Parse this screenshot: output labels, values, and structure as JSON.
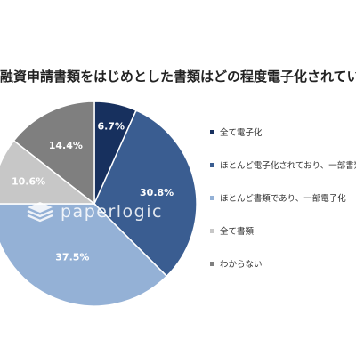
{
  "chart_data": {
    "type": "pie",
    "title": "融資申請書類をはじめとした書類はどの程度電子化されていますか",
    "categories": [
      "全て電子化",
      "ほとんど電子化されており、一部書類",
      "ほとんど書類であり、一部電子化",
      "全て書類",
      "わからない"
    ],
    "values": [
      6.7,
      30.8,
      37.5,
      10.6,
      14.4
    ],
    "value_labels": [
      "6.7%",
      "30.8%",
      "37.5%",
      "10.6%",
      "14.4%"
    ],
    "colors": [
      "#17305e",
      "#3a5d91",
      "#94b1d6",
      "#c7c7c7",
      "#7f7f7f"
    ],
    "label_colors": [
      "#ffffff",
      "#ffffff",
      "#ffffff",
      "#ffffff",
      "#ffffff"
    ],
    "start_angle_deg": 0,
    "direction": "clockwise",
    "legend_position": "right"
  },
  "watermark": {
    "text": "paperlogic",
    "logo": "stacked-layers-icon"
  }
}
